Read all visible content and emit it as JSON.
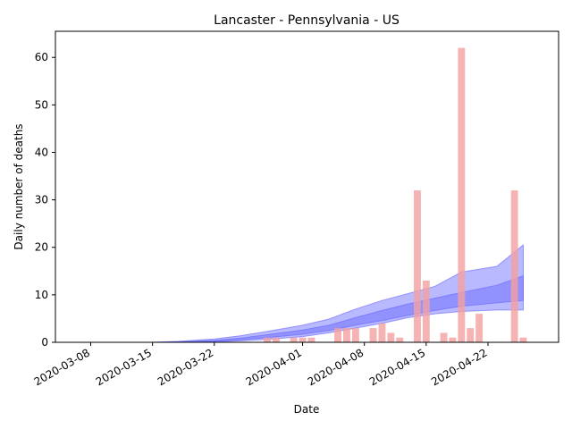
{
  "chart_data": {
    "type": "bar",
    "title": "Lancaster - Pennsylvania - US",
    "xlabel": "Date",
    "ylabel": "Daily number of deaths",
    "x_ticks": [
      "2020-03-08",
      "2020-03-15",
      "2020-03-22",
      "2020-04-01",
      "2020-04-08",
      "2020-04-15",
      "2020-04-22"
    ],
    "y_ticks": [
      "0",
      "10",
      "20",
      "30",
      "40",
      "50",
      "60"
    ],
    "ylim": [
      0,
      65.5
    ],
    "xlim": [
      "2020-03-04",
      "2020-04-30"
    ],
    "grid": false,
    "bar_color": "#f4a0a0",
    "band_color": "#6464ff",
    "bars": {
      "dates": [
        "2020-03-28",
        "2020-03-29",
        "2020-03-31",
        "2020-04-01",
        "2020-04-02",
        "2020-04-05",
        "2020-04-06",
        "2020-04-07",
        "2020-04-09",
        "2020-04-10",
        "2020-04-11",
        "2020-04-12",
        "2020-04-14",
        "2020-04-15",
        "2020-04-17",
        "2020-04-18",
        "2020-04-19",
        "2020-04-20",
        "2020-04-21",
        "2020-04-25",
        "2020-04-26"
      ],
      "values": [
        1,
        1,
        1,
        1,
        1,
        3,
        3,
        3,
        3,
        4,
        2,
        1,
        32,
        13,
        2,
        1,
        62,
        3,
        6,
        32,
        1
      ]
    },
    "bands": [
      {
        "dates": [
          "2020-03-15",
          "2020-03-18",
          "2020-03-22",
          "2020-03-25",
          "2020-03-28",
          "2020-04-01",
          "2020-04-04",
          "2020-04-07",
          "2020-04-10",
          "2020-04-13",
          "2020-04-16",
          "2020-04-19",
          "2020-04-23",
          "2020-04-26"
        ],
        "upper": [
          0,
          0.2,
          0.7,
          1.4,
          2.3,
          3.6,
          4.9,
          7.0,
          8.8,
          10.3,
          11.8,
          14.8,
          16.0,
          20.5
        ],
        "lower": [
          0,
          0,
          0.1,
          0.3,
          0.6,
          1.2,
          2.0,
          3.0,
          4.0,
          5.2,
          6.0,
          6.5,
          6.8,
          6.8
        ]
      },
      {
        "dates": [
          "2020-03-15",
          "2020-03-18",
          "2020-03-22",
          "2020-03-25",
          "2020-03-28",
          "2020-04-01",
          "2020-04-04",
          "2020-04-07",
          "2020-04-10",
          "2020-04-13",
          "2020-04-16",
          "2020-04-19",
          "2020-04-23",
          "2020-04-26"
        ],
        "upper": [
          0,
          0.1,
          0.4,
          0.9,
          1.6,
          2.6,
          3.6,
          5.2,
          6.7,
          8.1,
          9.3,
          10.5,
          12.0,
          14.0
        ],
        "lower": [
          0,
          0,
          0.2,
          0.5,
          1.0,
          1.7,
          2.5,
          3.6,
          4.6,
          5.7,
          6.7,
          7.6,
          8.3,
          8.8
        ]
      }
    ]
  }
}
